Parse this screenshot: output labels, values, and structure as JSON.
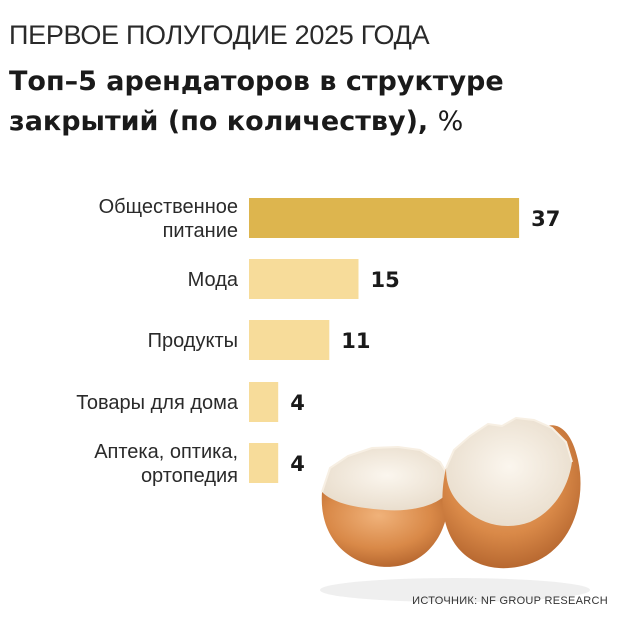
{
  "header": {
    "kicker": "ПЕРВОЕ ПОЛУГОДИЕ 2025 ГОДА",
    "title": "Топ–5 арендаторов в структуре закрытий (по количеству),",
    "unit": "%"
  },
  "chart_data": {
    "type": "bar",
    "orientation": "horizontal",
    "categories": [
      [
        "Общественное",
        "питание"
      ],
      [
        "Мода"
      ],
      [
        "Продукты"
      ],
      [
        "Товары для дома"
      ],
      [
        "Аптека, оптика,",
        "ортопедия"
      ]
    ],
    "values": [
      37,
      15,
      11,
      4,
      4
    ],
    "colors": [
      "#ddb54e",
      "#f7dc9a",
      "#f7dc9a",
      "#f7dc9a",
      "#f7dc9a"
    ],
    "grid": false
  },
  "footer": {
    "source": "ИСТОЧНИК: NF GROUP RESEARCH"
  }
}
